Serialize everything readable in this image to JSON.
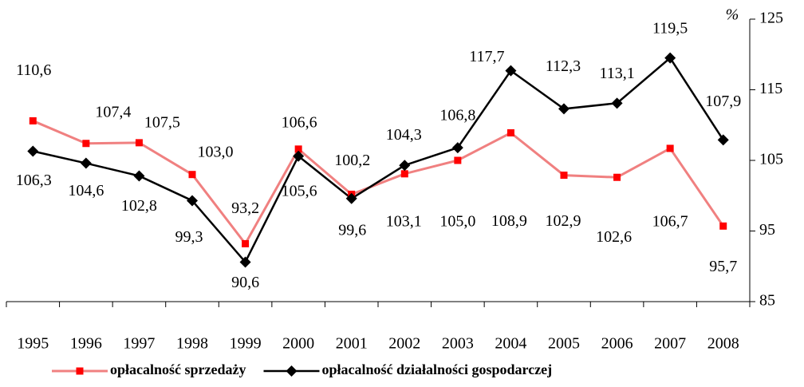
{
  "chart_data": {
    "type": "line",
    "y_axis_label": "%",
    "categories": [
      "1995",
      "1996",
      "1997",
      "1998",
      "1999",
      "2000",
      "2001",
      "2002",
      "2003",
      "2004",
      "2005",
      "2006",
      "2007",
      "2008"
    ],
    "series": [
      {
        "name": "opłacalność sprzedaży",
        "color": "#f08080",
        "marker": "square",
        "values": [
          110.6,
          107.4,
          107.5,
          103.0,
          93.2,
          106.6,
          100.2,
          103.1,
          105.0,
          108.9,
          102.9,
          102.6,
          106.7,
          95.7
        ],
        "value_labels": [
          "110,6",
          "107,4",
          "107,5",
          "103,0",
          "93,2",
          "106,6",
          "100,2",
          "103,1",
          "105,0",
          "108,9",
          "102,9",
          "102,6",
          "106,7",
          "95,7"
        ]
      },
      {
        "name": "opłacalność działalności gospodarczej",
        "color": "#000000",
        "marker": "diamond",
        "values": [
          106.3,
          104.6,
          102.8,
          99.3,
          90.6,
          105.6,
          99.6,
          104.3,
          106.8,
          117.7,
          112.3,
          113.1,
          119.5,
          107.9
        ],
        "value_labels": [
          "106,3",
          "104,6",
          "102,8",
          "99,3",
          "90,6",
          "105,6",
          "99,6",
          "104,3",
          "106,8",
          "117,7",
          "112,3",
          "113,1",
          "119,5",
          "107,9"
        ]
      }
    ],
    "ylim": [
      85,
      125
    ],
    "yticks": [
      85,
      95,
      105,
      115,
      125
    ],
    "y_axis_side": "right",
    "grid": false,
    "legend": "bottom"
  }
}
